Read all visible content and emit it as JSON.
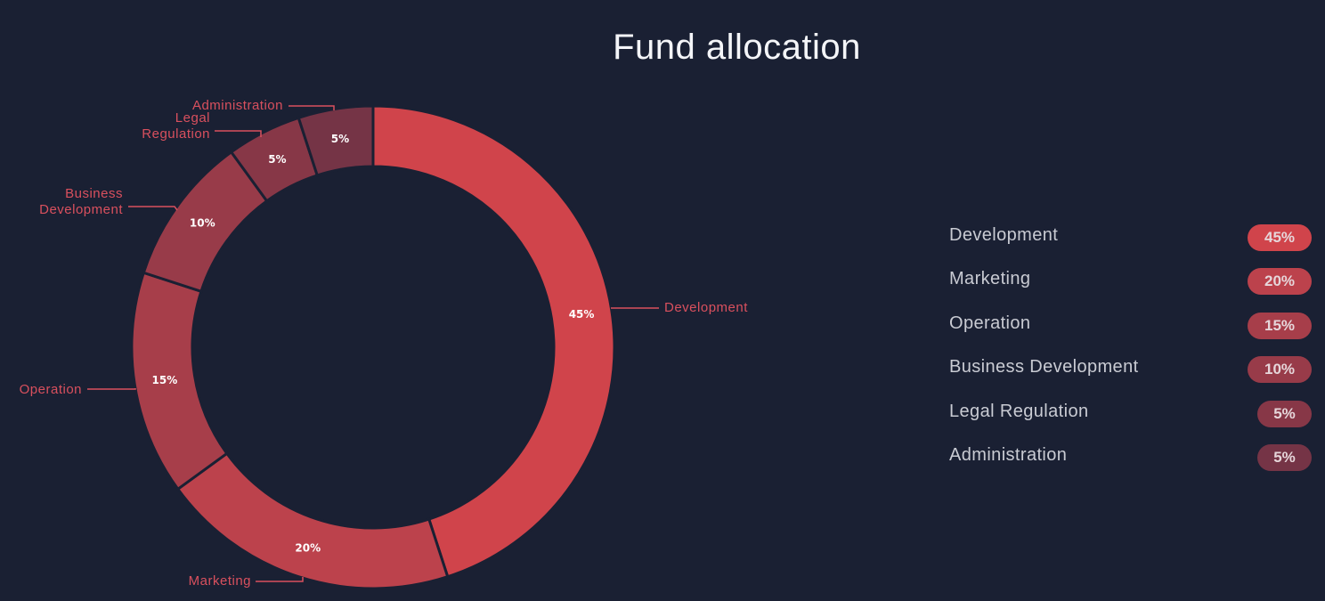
{
  "title": "Fund allocation",
  "chart_data": {
    "type": "pie",
    "variant": "donut",
    "title": "Fund allocation",
    "slices": [
      {
        "name": "Development",
        "value": 45,
        "label": "45%",
        "callout": [
          "Development"
        ],
        "color": "#d0444b"
      },
      {
        "name": "Marketing",
        "value": 20,
        "label": "20%",
        "callout": [
          "Marketing"
        ],
        "color": "#bc424c"
      },
      {
        "name": "Operation",
        "value": 15,
        "label": "15%",
        "callout": [
          "Operation"
        ],
        "color": "#a73e4a"
      },
      {
        "name": "Business Development",
        "value": 10,
        "label": "10%",
        "callout": [
          "Business",
          "Development"
        ],
        "color": "#983b49"
      },
      {
        "name": "Legal Regulation",
        "value": 5,
        "label": "5%",
        "callout": [
          "Legal",
          "Regulation"
        ],
        "color": "#873747"
      },
      {
        "name": "Administration",
        "value": 5,
        "label": "5%",
        "callout": [
          "Administration"
        ],
        "color": "#753446"
      }
    ],
    "start_angle": "top",
    "direction": "clockwise",
    "legend_placement": "right"
  },
  "legend": {
    "items": [
      {
        "label": "Development",
        "value": "45%",
        "color": "#d0444b"
      },
      {
        "label": "Marketing",
        "value": "20%",
        "color": "#bc424c"
      },
      {
        "label": "Operation",
        "value": "15%",
        "color": "#a73e4a"
      },
      {
        "label": "Business Development",
        "value": "10%",
        "color": "#983b49"
      },
      {
        "label": "Legal Regulation",
        "value": "5%",
        "color": "#873747"
      },
      {
        "label": "Administration",
        "value": "5%",
        "color": "#753446"
      }
    ]
  },
  "colors": {
    "background": "#1a2033",
    "callout_text": "#d9505e",
    "title_text": "#f4f5f8"
  }
}
